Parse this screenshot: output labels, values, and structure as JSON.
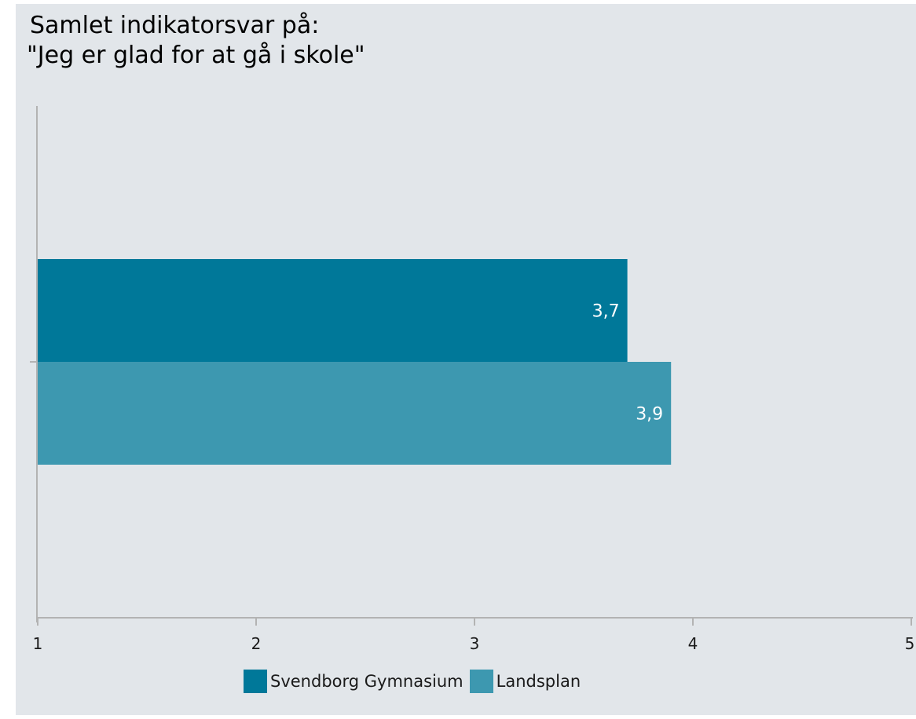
{
  "title": {
    "line1": "Samlet indikatorsvar på:",
    "line2": "\"Jeg er glad for at gå i skole\""
  },
  "chart_data": {
    "type": "bar",
    "orientation": "horizontal",
    "title": "Samlet indikatorsvar på: \"Jeg er glad for at gå i skole\"",
    "categories": [
      ""
    ],
    "series": [
      {
        "name": "Svendborg Gymnasium",
        "values": [
          3.7
        ],
        "labels": [
          "3,7"
        ],
        "color": "#007899"
      },
      {
        "name": "Landsplan",
        "values": [
          3.9
        ],
        "labels": [
          "3,9"
        ],
        "color": "#3d98b0"
      }
    ],
    "xlim": [
      1,
      5
    ],
    "xticks": [
      1,
      2,
      3,
      4,
      5
    ],
    "xticklabels": [
      "1",
      "2",
      "3",
      "4",
      "5"
    ],
    "xlabel": "",
    "ylabel": "",
    "grid": false,
    "legend": "bottom"
  },
  "colors": {
    "background": "#e2e6ea",
    "axis": "#b3b3b3",
    "label_text": "#ffffff"
  }
}
